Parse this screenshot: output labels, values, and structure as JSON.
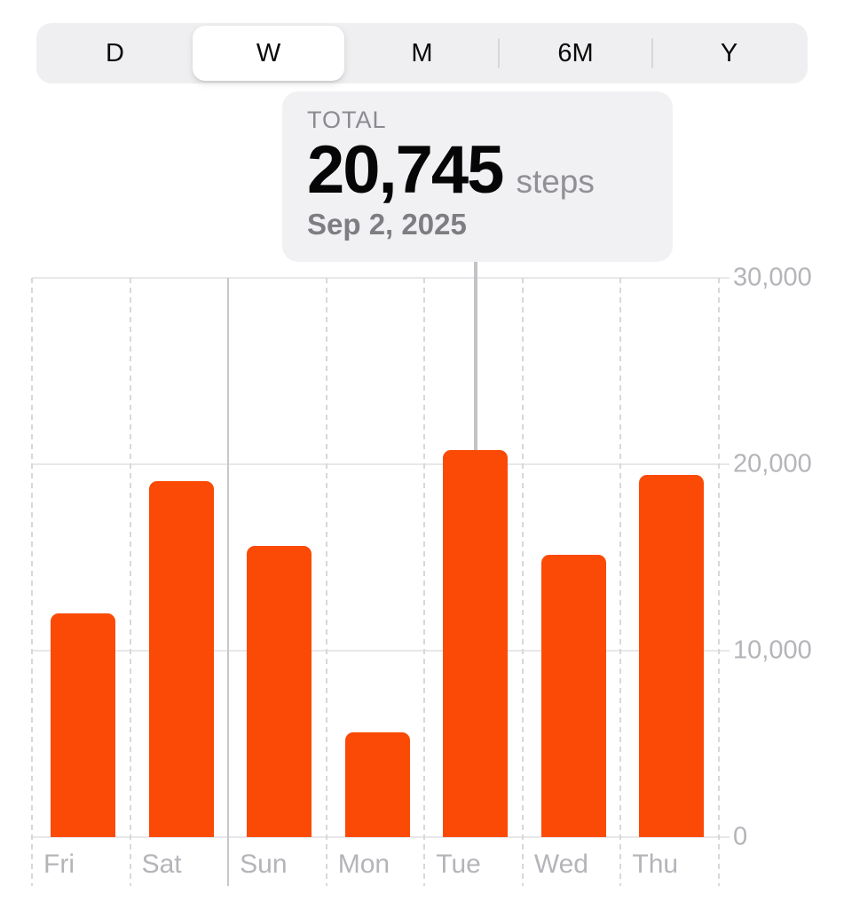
{
  "segmented_control": {
    "options": [
      {
        "label": "D",
        "selected": false
      },
      {
        "label": "W",
        "selected": true
      },
      {
        "label": "M",
        "selected": false
      },
      {
        "label": "6M",
        "selected": false
      },
      {
        "label": "Y",
        "selected": false
      }
    ]
  },
  "tooltip": {
    "label": "TOTAL",
    "value": "20,745",
    "unit": "steps",
    "date": "Sep 2, 2025"
  },
  "chart_data": {
    "type": "bar",
    "categories": [
      "Fri",
      "Sat",
      "Sun",
      "Mon",
      "Tue",
      "Wed",
      "Thu"
    ],
    "values": [
      12000,
      19100,
      15600,
      5600,
      20745,
      15150,
      19450
    ],
    "unit": "steps",
    "ylim": [
      0,
      30000
    ],
    "y_ticks": [
      {
        "label": "0",
        "value": 0
      },
      {
        "label": "10,000",
        "value": 10000
      },
      {
        "label": "20,000",
        "value": 20000
      },
      {
        "label": "30,000",
        "value": 30000
      }
    ],
    "selected": {
      "index": 4,
      "category": "Tue",
      "value": 20745,
      "date": "Sep 2, 2025"
    },
    "grid": {
      "horizontal": "solid",
      "vertical": "dashed",
      "solid_vertical_boundary_index": 2
    },
    "legend": "none"
  },
  "colors": {
    "bar": "#fb4a05",
    "tooltip_bg": "#f1f1f4",
    "segmented_bg": "#efeff1",
    "axis_text": "#b4b4b9",
    "grid_horizontal": "#e8e8ea",
    "grid_dashed": "#d8d8db",
    "grid_solid_boundary": "#c8c8cc",
    "pointer_line": "#c2c2c7"
  }
}
